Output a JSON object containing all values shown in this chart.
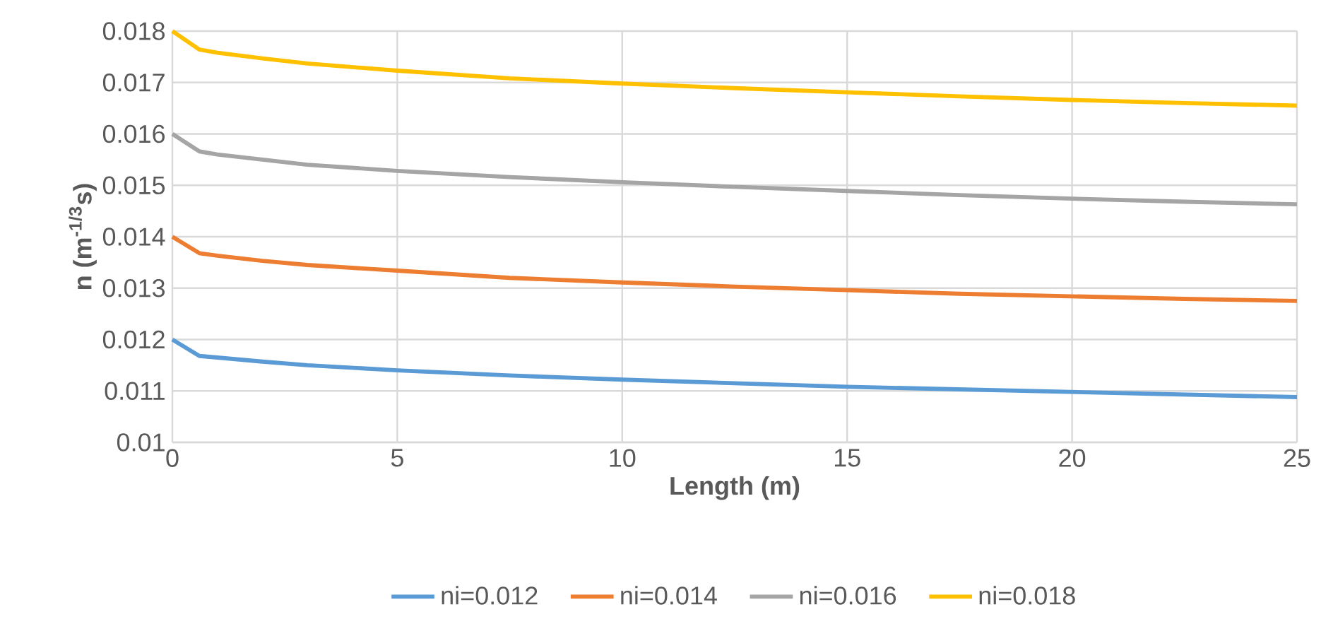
{
  "chart_data": {
    "type": "line",
    "xlabel": "Length (m)",
    "ylabel": "n (m$^{-1/3}$s)",
    "xlim": [
      0,
      25
    ],
    "xticks": [
      0,
      5,
      10,
      15,
      20,
      25
    ],
    "ylim": [
      0.01,
      0.018
    ],
    "yticks": [
      0.01,
      0.011,
      0.012,
      0.013,
      0.014,
      0.015,
      0.016,
      0.017,
      0.018
    ],
    "grid": true,
    "legend": "bottom",
    "marker": "none",
    "line_style": "solid",
    "series": [
      {
        "name": "ni=0.012",
        "color": "#5b9bd5",
        "x": [
          0,
          0.6,
          1,
          2,
          3,
          5,
          7.5,
          10,
          12.5,
          15,
          17.5,
          20,
          22.5,
          25
        ],
        "values": [
          0.012,
          0.01168,
          0.01165,
          0.01157,
          0.0115,
          0.0114,
          0.0113,
          0.01122,
          0.01115,
          0.01108,
          0.01103,
          0.01098,
          0.01093,
          0.01088
        ]
      },
      {
        "name": "ni=0.014",
        "color": "#ed7d31",
        "x": [
          0,
          0.6,
          1,
          2,
          3,
          5,
          7.5,
          10,
          12.5,
          15,
          17.5,
          20,
          22.5,
          25
        ],
        "values": [
          0.014,
          0.01368,
          0.01363,
          0.01353,
          0.01345,
          0.01334,
          0.0132,
          0.01311,
          0.01303,
          0.01296,
          0.01289,
          0.01284,
          0.01279,
          0.01275
        ]
      },
      {
        "name": "ni=0.016",
        "color": "#a5a5a5",
        "x": [
          0,
          0.6,
          1,
          2,
          3,
          5,
          7.5,
          10,
          12.5,
          15,
          17.5,
          20,
          22.5,
          25
        ],
        "values": [
          0.016,
          0.01566,
          0.0156,
          0.0155,
          0.0154,
          0.01528,
          0.01516,
          0.01506,
          0.01497,
          0.01489,
          0.01481,
          0.01474,
          0.01468,
          0.01463
        ]
      },
      {
        "name": "ni=0.018",
        "color": "#ffc000",
        "x": [
          0,
          0.6,
          1,
          2,
          3,
          5,
          7.5,
          10,
          12.5,
          15,
          17.5,
          20,
          22.5,
          25
        ],
        "values": [
          0.018,
          0.01764,
          0.01758,
          0.01747,
          0.01737,
          0.01723,
          0.01708,
          0.01698,
          0.01689,
          0.01681,
          0.01673,
          0.01666,
          0.0166,
          0.01655
        ]
      }
    ]
  }
}
